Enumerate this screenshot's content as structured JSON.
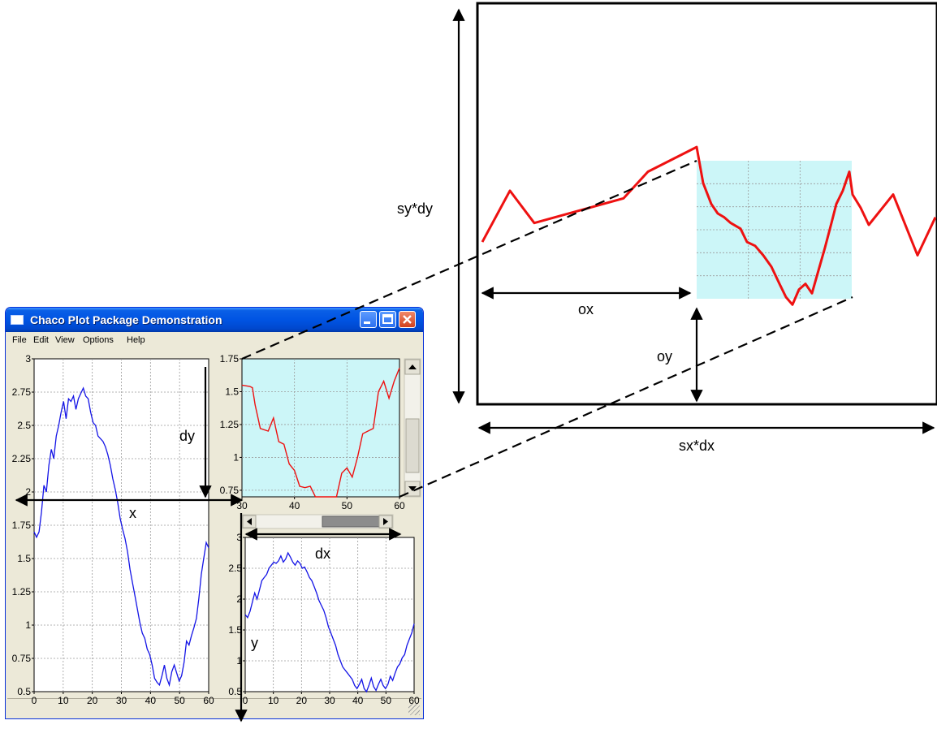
{
  "window": {
    "title": "Chaco Plot Package Demonstration",
    "menu": [
      "File",
      "Edit",
      "View",
      "Options",
      "Help"
    ]
  },
  "colors": {
    "blue_series": "#1414e6",
    "red_series": "#ee1111",
    "viewport_fill": "#ccf6f8"
  },
  "labels": {
    "dy": "dy",
    "x": "x",
    "dx": "dx",
    "y": "y",
    "ox": "ox",
    "oy": "oy",
    "sy_dy": "sy*dy",
    "sx_dx": "sx*dx"
  },
  "chart_data": [
    {
      "type": "line",
      "xlim": [
        0,
        60
      ],
      "ylim": [
        0.5,
        3
      ],
      "xticks": [
        "0",
        "10",
        "20",
        "30",
        "40",
        "50",
        "60"
      ],
      "yticks": [
        "0.5",
        "0.75",
        "1",
        "1.25",
        "1.5",
        "1.75",
        "2",
        "2.25",
        "2.5",
        "2.75",
        "3"
      ],
      "grid": true,
      "series": [
        {
          "values": [
            1.7,
            1.66,
            1.7,
            1.85,
            2.05,
            2.0,
            2.2,
            2.32,
            2.25,
            2.42,
            2.5,
            2.6,
            2.68,
            2.55,
            2.7,
            2.68,
            2.72,
            2.62,
            2.7,
            2.74,
            2.78,
            2.72,
            2.7,
            2.6,
            2.52,
            2.5,
            2.42,
            2.4,
            2.38,
            2.34,
            2.28,
            2.2,
            2.1,
            2.02,
            1.92,
            1.8,
            1.72,
            1.65,
            1.55,
            1.42,
            1.32,
            1.22,
            1.12,
            1.02,
            0.94,
            0.9,
            0.82,
            0.78,
            0.7,
            0.6,
            0.57,
            0.55,
            0.62,
            0.7,
            0.6,
            0.55,
            0.65,
            0.7,
            0.64,
            0.58,
            0.62,
            0.72,
            0.88,
            0.85,
            0.92,
            0.98,
            1.05,
            1.2,
            1.38,
            1.5,
            1.62,
            1.58
          ]
        }
      ]
    },
    {
      "type": "line",
      "xlim": [
        30,
        60
      ],
      "ylim": [
        0.7,
        1.75
      ],
      "xticks": [
        "30",
        "40",
        "50",
        "60"
      ],
      "yticks": [
        "0.75",
        "1",
        "1.25",
        "1.5",
        "1.75"
      ],
      "grid": true,
      "series": [
        {
          "values": [
            [
              30,
              1.55
            ],
            [
              31.5,
              1.54
            ],
            [
              32,
              1.53
            ],
            [
              32.5,
              1.4
            ],
            [
              33.5,
              1.22
            ],
            [
              35,
              1.2
            ],
            [
              36,
              1.3
            ],
            [
              37,
              1.12
            ],
            [
              38,
              1.1
            ],
            [
              39,
              0.95
            ],
            [
              40,
              0.9
            ],
            [
              41,
              0.78
            ],
            [
              42,
              0.77
            ],
            [
              43,
              0.78
            ],
            [
              44,
              0.68
            ],
            [
              45,
              0.66
            ],
            [
              46,
              0.64
            ],
            [
              47,
              0.7
            ],
            [
              48,
              0.64
            ],
            [
              49,
              0.88
            ],
            [
              50,
              0.92
            ],
            [
              51,
              0.85
            ],
            [
              52,
              1.0
            ],
            [
              53,
              1.18
            ],
            [
              54,
              1.2
            ],
            [
              55,
              1.22
            ],
            [
              56,
              1.5
            ],
            [
              57,
              1.58
            ],
            [
              58,
              1.45
            ],
            [
              59,
              1.58
            ],
            [
              60,
              1.68
            ]
          ]
        }
      ]
    },
    {
      "type": "line",
      "xlim": [
        0,
        60
      ],
      "ylim": [
        0.5,
        3
      ],
      "xticks": [
        "0",
        "10",
        "20",
        "30",
        "40",
        "50",
        "60"
      ],
      "yticks": [
        "0.5",
        "1",
        "1.5",
        "2",
        "2.5",
        "3"
      ],
      "grid": true,
      "series": [
        {
          "values": [
            1.75,
            1.7,
            1.8,
            1.95,
            2.1,
            2.0,
            2.15,
            2.3,
            2.35,
            2.4,
            2.5,
            2.55,
            2.6,
            2.58,
            2.62,
            2.7,
            2.6,
            2.65,
            2.75,
            2.68,
            2.6,
            2.55,
            2.62,
            2.58,
            2.5,
            2.52,
            2.44,
            2.35,
            2.3,
            2.2,
            2.1,
            1.98,
            1.9,
            1.82,
            1.7,
            1.55,
            1.45,
            1.35,
            1.25,
            1.1,
            1.0,
            0.9,
            0.85,
            0.8,
            0.75,
            0.7,
            0.6,
            0.55,
            0.62,
            0.7,
            0.55,
            0.5,
            0.6,
            0.72,
            0.58,
            0.52,
            0.62,
            0.7,
            0.6,
            0.55,
            0.62,
            0.75,
            0.68,
            0.8,
            0.9,
            0.95,
            1.05,
            1.1,
            1.25,
            1.35,
            1.45,
            1.6
          ]
        }
      ]
    },
    {
      "type": "line",
      "grid": true,
      "series": [
        {
          "values": [
            0.35,
            0.62,
            0.45,
            0.58,
            0.72,
            0.85,
            0.66,
            0.55,
            0.5,
            0.48,
            0.45,
            0.42,
            0.35,
            0.33,
            0.28,
            0.22,
            0.13,
            0.06,
            0.02,
            0.1,
            0.13,
            0.08,
            0.2,
            0.32,
            0.45,
            0.55,
            0.62,
            0.72,
            0.6,
            0.53,
            0.44,
            0.6,
            0.28,
            0.48
          ]
        }
      ]
    }
  ]
}
